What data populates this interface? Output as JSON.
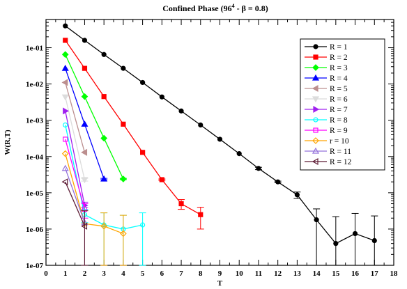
{
  "chart_data": {
    "type": "line",
    "title": "Confined Phase (96",
    "title_superscript": "4",
    "title_suffix": " - β = 0.8)",
    "xlabel": "T",
    "ylabel": "W(R,T)",
    "xlim": [
      0,
      18
    ],
    "ylim": [
      1e-07,
      0.6
    ],
    "yscale": "log",
    "x_ticks": [
      "0",
      "1",
      "2",
      "3",
      "4",
      "5",
      "6",
      "7",
      "8",
      "9",
      "10",
      "11",
      "12",
      "13",
      "14",
      "15",
      "16",
      "17",
      "18"
    ],
    "y_ticks": [
      {
        "label": "1e-07",
        "value": 1e-07
      },
      {
        "label": "1e-06",
        "value": 1e-06
      },
      {
        "label": "1e-05",
        "value": 1e-05
      },
      {
        "label": "1e-04",
        "value": 0.0001
      },
      {
        "label": "1e-03",
        "value": 0.001
      },
      {
        "label": "1e-02",
        "value": 0.01
      },
      {
        "label": "1e-01",
        "value": 0.1
      }
    ],
    "grid": false,
    "legend_position": "top-right",
    "series": [
      {
        "name": "R = 1",
        "color": "#000000",
        "marker": "circle",
        "x": [
          1,
          2,
          3,
          4,
          5,
          6,
          7,
          8,
          9,
          10,
          11,
          12,
          13,
          14,
          15,
          16,
          17
        ],
        "y": [
          0.4,
          0.16,
          0.065,
          0.027,
          0.011,
          0.0044,
          0.0018,
          0.00074,
          0.0003,
          0.00012,
          4.7e-05,
          2e-05,
          8.8e-06,
          1.8e-06,
          4e-07,
          7.5e-07,
          4.8e-07
        ],
        "err": [
          [
            0.4,
            0.4
          ],
          [
            0.16,
            0.16
          ],
          [
            0.065,
            0.065
          ],
          [
            0.027,
            0.027
          ],
          [
            0.011,
            0.011
          ],
          [
            0.0044,
            0.0044
          ],
          [
            0.0018,
            0.0018
          ],
          [
            0.00074,
            0.00074
          ],
          [
            0.0003,
            0.0003
          ],
          [
            0.00012,
            0.00012
          ],
          [
            4.35e-05,
            5.05e-05
          ],
          [
            1.9e-05,
            2.1e-05
          ],
          [
            7e-06,
            1.05e-05
          ],
          [
            1e-07,
            3.6e-06
          ],
          [
            1e-07,
            2.2e-06
          ],
          [
            1e-07,
            2.7e-06
          ],
          [
            1e-07,
            2.3e-06
          ]
        ]
      },
      {
        "name": "R = 2",
        "color": "#ff0000",
        "marker": "square",
        "x": [
          1,
          2,
          3,
          4,
          5,
          6,
          7,
          8
        ],
        "y": [
          0.16,
          0.027,
          0.0045,
          0.00078,
          0.00013,
          2.3e-05,
          5e-06,
          2.5e-06
        ],
        "err": [
          [
            0.16,
            0.16
          ],
          [
            0.027,
            0.027
          ],
          [
            0.0045,
            0.0045
          ],
          [
            0.00078,
            0.00078
          ],
          [
            0.00013,
            0.00013
          ],
          [
            2.2e-05,
            2.4e-05
          ],
          [
            3.5e-06,
            6.5e-06
          ],
          [
            1e-06,
            4e-06
          ]
        ]
      },
      {
        "name": "R = 3",
        "color": "#00ff00",
        "marker": "diamond",
        "x": [
          1,
          2,
          3,
          4
        ],
        "y": [
          0.065,
          0.0045,
          0.00032,
          2.4e-05
        ],
        "err": [
          [
            0.065,
            0.065
          ],
          [
            0.0045,
            0.0045
          ],
          [
            0.00032,
            0.00032
          ],
          [
            2.3e-05,
            2.5e-05
          ]
        ]
      },
      {
        "name": "R = 4",
        "color": "#0000ff",
        "marker": "triangle-up",
        "x": [
          1,
          2,
          3
        ],
        "y": [
          0.027,
          0.00078,
          2.4e-05
        ],
        "err": [
          [
            0.027,
            0.027
          ],
          [
            0.00078,
            0.00078
          ],
          [
            2.3e-05,
            2.5e-05
          ]
        ]
      },
      {
        "name": "R = 5",
        "color": "#bc8f8f",
        "marker": "triangle-left",
        "x": [
          1,
          2
        ],
        "y": [
          0.011,
          0.00013
        ],
        "err": [
          [
            0.011,
            0.011
          ],
          [
            0.00013,
            0.00013
          ]
        ]
      },
      {
        "name": "R = 6",
        "color": "#dcdcdc",
        "marker": "triangle-down",
        "x": [
          1,
          2
        ],
        "y": [
          0.0044,
          2.3e-05
        ],
        "err": [
          [
            0.0044,
            0.0044
          ],
          [
            2.1e-05,
            2.5e-05
          ]
        ]
      },
      {
        "name": "R = 7",
        "color": "#a020f0",
        "marker": "triangle-right",
        "x": [
          1,
          2
        ],
        "y": [
          0.0018,
          4.5e-06
        ],
        "err": [
          [
            0.0018,
            0.0018
          ],
          [
            3.5e-06,
            5.5e-06
          ]
        ]
      },
      {
        "name": "R = 8",
        "color": "#00ffff",
        "marker": "circle-open",
        "x": [
          1,
          2,
          3,
          4,
          5
        ],
        "y": [
          0.00074,
          2.5e-06,
          1.3e-06,
          1e-06,
          1.3e-06
        ],
        "err": [
          [
            0.00074,
            0.00074
          ],
          [
            1.5e-06,
            3.5e-06
          ],
          [
            1e-07,
            2.8e-06
          ],
          [
            1e-07,
            2.4e-06
          ],
          [
            1e-07,
            2.8e-06
          ]
        ]
      },
      {
        "name": "R = 9",
        "color": "#ff00ff",
        "marker": "square-open",
        "x": [
          1,
          2
        ],
        "y": [
          0.0003,
          3.5e-06
        ],
        "err": [
          [
            0.0003,
            0.0003
          ],
          [
            2e-06,
            5e-06
          ]
        ]
      },
      {
        "name": "r = 10",
        "color": "#ffa500",
        "marker": "diamond-open",
        "x": [
          1,
          2,
          3,
          4
        ],
        "y": [
          0.00012,
          1.4e-06,
          1.2e-06,
          7.5e-07
        ],
        "err": [
          [
            0.00012,
            0.00012
          ],
          [
            1e-07,
            3.2e-06
          ],
          [
            1e-07,
            2.8e-06
          ],
          [
            1e-07,
            2.4e-06
          ]
        ]
      },
      {
        "name": "R = 11",
        "color": "#9370db",
        "marker": "triangle-up-open",
        "x": [
          1,
          2
        ],
        "y": [
          4.7e-05,
          1.5e-06
        ],
        "err": [
          [
            4.7e-05,
            4.7e-05
          ],
          [
            1e-07,
            4e-06
          ]
        ]
      },
      {
        "name": "R = 12",
        "color": "#5c1a33",
        "marker": "triangle-left-open",
        "x": [
          1,
          2
        ],
        "y": [
          2e-05,
          1.2e-06
        ],
        "err": [
          [
            2e-05,
            2e-05
          ],
          [
            1e-07,
            3.2e-06
          ]
        ]
      }
    ]
  }
}
